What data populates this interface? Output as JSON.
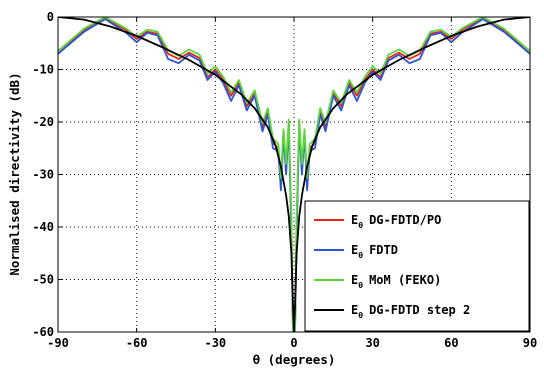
{
  "chart_data": {
    "type": "line",
    "title": "",
    "xlabel": "θ (degrees)",
    "ylabel": "Normalised directivity (dB)",
    "xlim": [
      -90,
      90
    ],
    "ylim": [
      -60,
      0
    ],
    "xticks": [
      -90,
      -60,
      -30,
      0,
      30,
      60,
      90
    ],
    "yticks": [
      0,
      -10,
      -20,
      -30,
      -40,
      -50,
      -60
    ],
    "xtick_labels": [
      "-90",
      "-60",
      "-30",
      "0",
      "30",
      "60",
      "90"
    ],
    "ytick_labels": [
      "0",
      "-10",
      "-20",
      "-30",
      "-40",
      "-50",
      "-60"
    ],
    "grid": true,
    "legend_position": "bottom-right",
    "series": [
      {
        "name": "DG-FDTD/PO",
        "legend_prefix": "E",
        "legend_subscript": "θ",
        "color": "#e8231f",
        "points": [
          [
            -90,
            -7
          ],
          [
            -80,
            -2.5
          ],
          [
            -72,
            -0.2
          ],
          [
            -64,
            -2.5
          ],
          [
            -60,
            -4.2
          ],
          [
            -56,
            -2.8
          ],
          [
            -52,
            -3.2
          ],
          [
            -48,
            -7
          ],
          [
            -44,
            -8
          ],
          [
            -40,
            -6.8
          ],
          [
            -36,
            -7.8
          ],
          [
            -33,
            -11.5
          ],
          [
            -30,
            -10
          ],
          [
            -27,
            -12
          ],
          [
            -24,
            -15
          ],
          [
            -21,
            -12.5
          ],
          [
            -18,
            -17
          ],
          [
            -15,
            -14.5
          ],
          [
            -12,
            -21
          ],
          [
            -10,
            -18
          ],
          [
            -8,
            -24
          ],
          [
            -6,
            -25
          ],
          [
            -5,
            -32
          ],
          [
            -4,
            -22
          ],
          [
            -3,
            -29
          ],
          [
            -2,
            -20
          ],
          [
            -1,
            -40
          ],
          [
            -0.4,
            -60
          ],
          [
            0,
            -60
          ],
          [
            0.4,
            -60
          ],
          [
            1,
            -40
          ],
          [
            2,
            -20
          ],
          [
            3,
            -29
          ],
          [
            4,
            -22
          ],
          [
            5,
            -32
          ],
          [
            6,
            -25
          ],
          [
            8,
            -24
          ],
          [
            10,
            -18
          ],
          [
            12,
            -21
          ],
          [
            15,
            -14.5
          ],
          [
            18,
            -17
          ],
          [
            21,
            -12.5
          ],
          [
            24,
            -15
          ],
          [
            27,
            -12
          ],
          [
            30,
            -10
          ],
          [
            33,
            -11.5
          ],
          [
            36,
            -7.8
          ],
          [
            40,
            -6.8
          ],
          [
            44,
            -8
          ],
          [
            48,
            -7
          ],
          [
            52,
            -3.2
          ],
          [
            56,
            -2.8
          ],
          [
            60,
            -4.2
          ],
          [
            64,
            -2.5
          ],
          [
            72,
            -0.2
          ],
          [
            80,
            -2.5
          ],
          [
            90,
            -7
          ]
        ]
      },
      {
        "name": "FDTD",
        "legend_prefix": "E",
        "legend_subscript": "θ",
        "color": "#2e55d8",
        "points": [
          [
            -90,
            -7
          ],
          [
            -80,
            -2.8
          ],
          [
            -72,
            -0.4
          ],
          [
            -64,
            -3
          ],
          [
            -60,
            -4.8
          ],
          [
            -56,
            -3
          ],
          [
            -52,
            -3.5
          ],
          [
            -48,
            -8
          ],
          [
            -44,
            -8.8
          ],
          [
            -40,
            -7.2
          ],
          [
            -36,
            -8.3
          ],
          [
            -33,
            -12
          ],
          [
            -30,
            -10.4
          ],
          [
            -27,
            -12.6
          ],
          [
            -24,
            -16
          ],
          [
            -21,
            -13
          ],
          [
            -18,
            -17.8
          ],
          [
            -15,
            -15
          ],
          [
            -12,
            -21.8
          ],
          [
            -10,
            -18.6
          ],
          [
            -8,
            -25
          ],
          [
            -6,
            -25.5
          ],
          [
            -5,
            -33
          ],
          [
            -4,
            -22.4
          ],
          [
            -3,
            -30
          ],
          [
            -2,
            -20.5
          ],
          [
            -1,
            -42
          ],
          [
            -0.4,
            -60
          ],
          [
            0,
            -60
          ],
          [
            0.4,
            -60
          ],
          [
            1,
            -42
          ],
          [
            2,
            -20.5
          ],
          [
            3,
            -30
          ],
          [
            4,
            -22.4
          ],
          [
            5,
            -33
          ],
          [
            6,
            -25.5
          ],
          [
            8,
            -25
          ],
          [
            10,
            -18.6
          ],
          [
            12,
            -21.8
          ],
          [
            15,
            -15
          ],
          [
            18,
            -17.8
          ],
          [
            21,
            -13
          ],
          [
            24,
            -16
          ],
          [
            27,
            -12.6
          ],
          [
            30,
            -10.4
          ],
          [
            33,
            -12
          ],
          [
            36,
            -8.3
          ],
          [
            40,
            -7.2
          ],
          [
            44,
            -8.8
          ],
          [
            48,
            -8
          ],
          [
            52,
            -3.5
          ],
          [
            56,
            -3
          ],
          [
            60,
            -4.8
          ],
          [
            64,
            -3
          ],
          [
            72,
            -0.4
          ],
          [
            80,
            -2.8
          ],
          [
            90,
            -7
          ]
        ]
      },
      {
        "name": "MoM (FEKO)",
        "legend_prefix": "E",
        "legend_subscript": "θ",
        "color": "#5bd63a",
        "points": [
          [
            -90,
            -6.5
          ],
          [
            -80,
            -2.2
          ],
          [
            -72,
            0
          ],
          [
            -64,
            -2.2
          ],
          [
            -60,
            -3.8
          ],
          [
            -56,
            -2.4
          ],
          [
            -52,
            -2.8
          ],
          [
            -48,
            -6.4
          ],
          [
            -44,
            -7.4
          ],
          [
            -40,
            -6.2
          ],
          [
            -36,
            -7.2
          ],
          [
            -33,
            -10.8
          ],
          [
            -30,
            -9.4
          ],
          [
            -27,
            -11.4
          ],
          [
            -24,
            -14.4
          ],
          [
            -21,
            -12
          ],
          [
            -18,
            -16.4
          ],
          [
            -15,
            -14
          ],
          [
            -12,
            -20.2
          ],
          [
            -10,
            -17.4
          ],
          [
            -8,
            -23.2
          ],
          [
            -6,
            -24.2
          ],
          [
            -5,
            -30.6
          ],
          [
            -4,
            -21.4
          ],
          [
            -3,
            -28
          ],
          [
            -2,
            -19.5
          ],
          [
            -1,
            -38
          ],
          [
            -0.4,
            -60
          ],
          [
            0,
            -60
          ],
          [
            0.4,
            -60
          ],
          [
            1,
            -38
          ],
          [
            2,
            -19.5
          ],
          [
            3,
            -28
          ],
          [
            4,
            -21.4
          ],
          [
            5,
            -30.6
          ],
          [
            6,
            -24.2
          ],
          [
            8,
            -23.2
          ],
          [
            10,
            -17.4
          ],
          [
            12,
            -20.2
          ],
          [
            15,
            -14
          ],
          [
            18,
            -16.4
          ],
          [
            21,
            -12
          ],
          [
            24,
            -14.4
          ],
          [
            27,
            -11.4
          ],
          [
            30,
            -9.4
          ],
          [
            33,
            -10.8
          ],
          [
            36,
            -7.2
          ],
          [
            40,
            -6.2
          ],
          [
            44,
            -7.4
          ],
          [
            48,
            -6.4
          ],
          [
            52,
            -2.8
          ],
          [
            56,
            -2.4
          ],
          [
            60,
            -3.8
          ],
          [
            64,
            -2.2
          ],
          [
            72,
            0
          ],
          [
            80,
            -2.2
          ],
          [
            90,
            -6.5
          ]
        ]
      },
      {
        "name": "DG-FDTD step 2",
        "legend_prefix": "E",
        "legend_subscript": "θ",
        "color": "#000000",
        "points": [
          [
            -90,
            0
          ],
          [
            -80,
            -0.5
          ],
          [
            -70,
            -1.8
          ],
          [
            -60,
            -3.6
          ],
          [
            -50,
            -5.8
          ],
          [
            -40,
            -8.2
          ],
          [
            -30,
            -11
          ],
          [
            -20,
            -14.8
          ],
          [
            -15,
            -17.4
          ],
          [
            -10,
            -21
          ],
          [
            -7,
            -24.5
          ],
          [
            -5,
            -28.5
          ],
          [
            -3,
            -34
          ],
          [
            -2,
            -38
          ],
          [
            -1,
            -45
          ],
          [
            -0.4,
            -55
          ],
          [
            0,
            -60
          ],
          [
            0.4,
            -55
          ],
          [
            1,
            -45
          ],
          [
            2,
            -38
          ],
          [
            3,
            -34
          ],
          [
            5,
            -28.5
          ],
          [
            7,
            -24.5
          ],
          [
            10,
            -21
          ],
          [
            15,
            -17.4
          ],
          [
            20,
            -14.8
          ],
          [
            30,
            -11
          ],
          [
            40,
            -8.2
          ],
          [
            50,
            -5.8
          ],
          [
            60,
            -3.6
          ],
          [
            70,
            -1.8
          ],
          [
            80,
            -0.5
          ],
          [
            90,
            0
          ]
        ]
      }
    ]
  }
}
